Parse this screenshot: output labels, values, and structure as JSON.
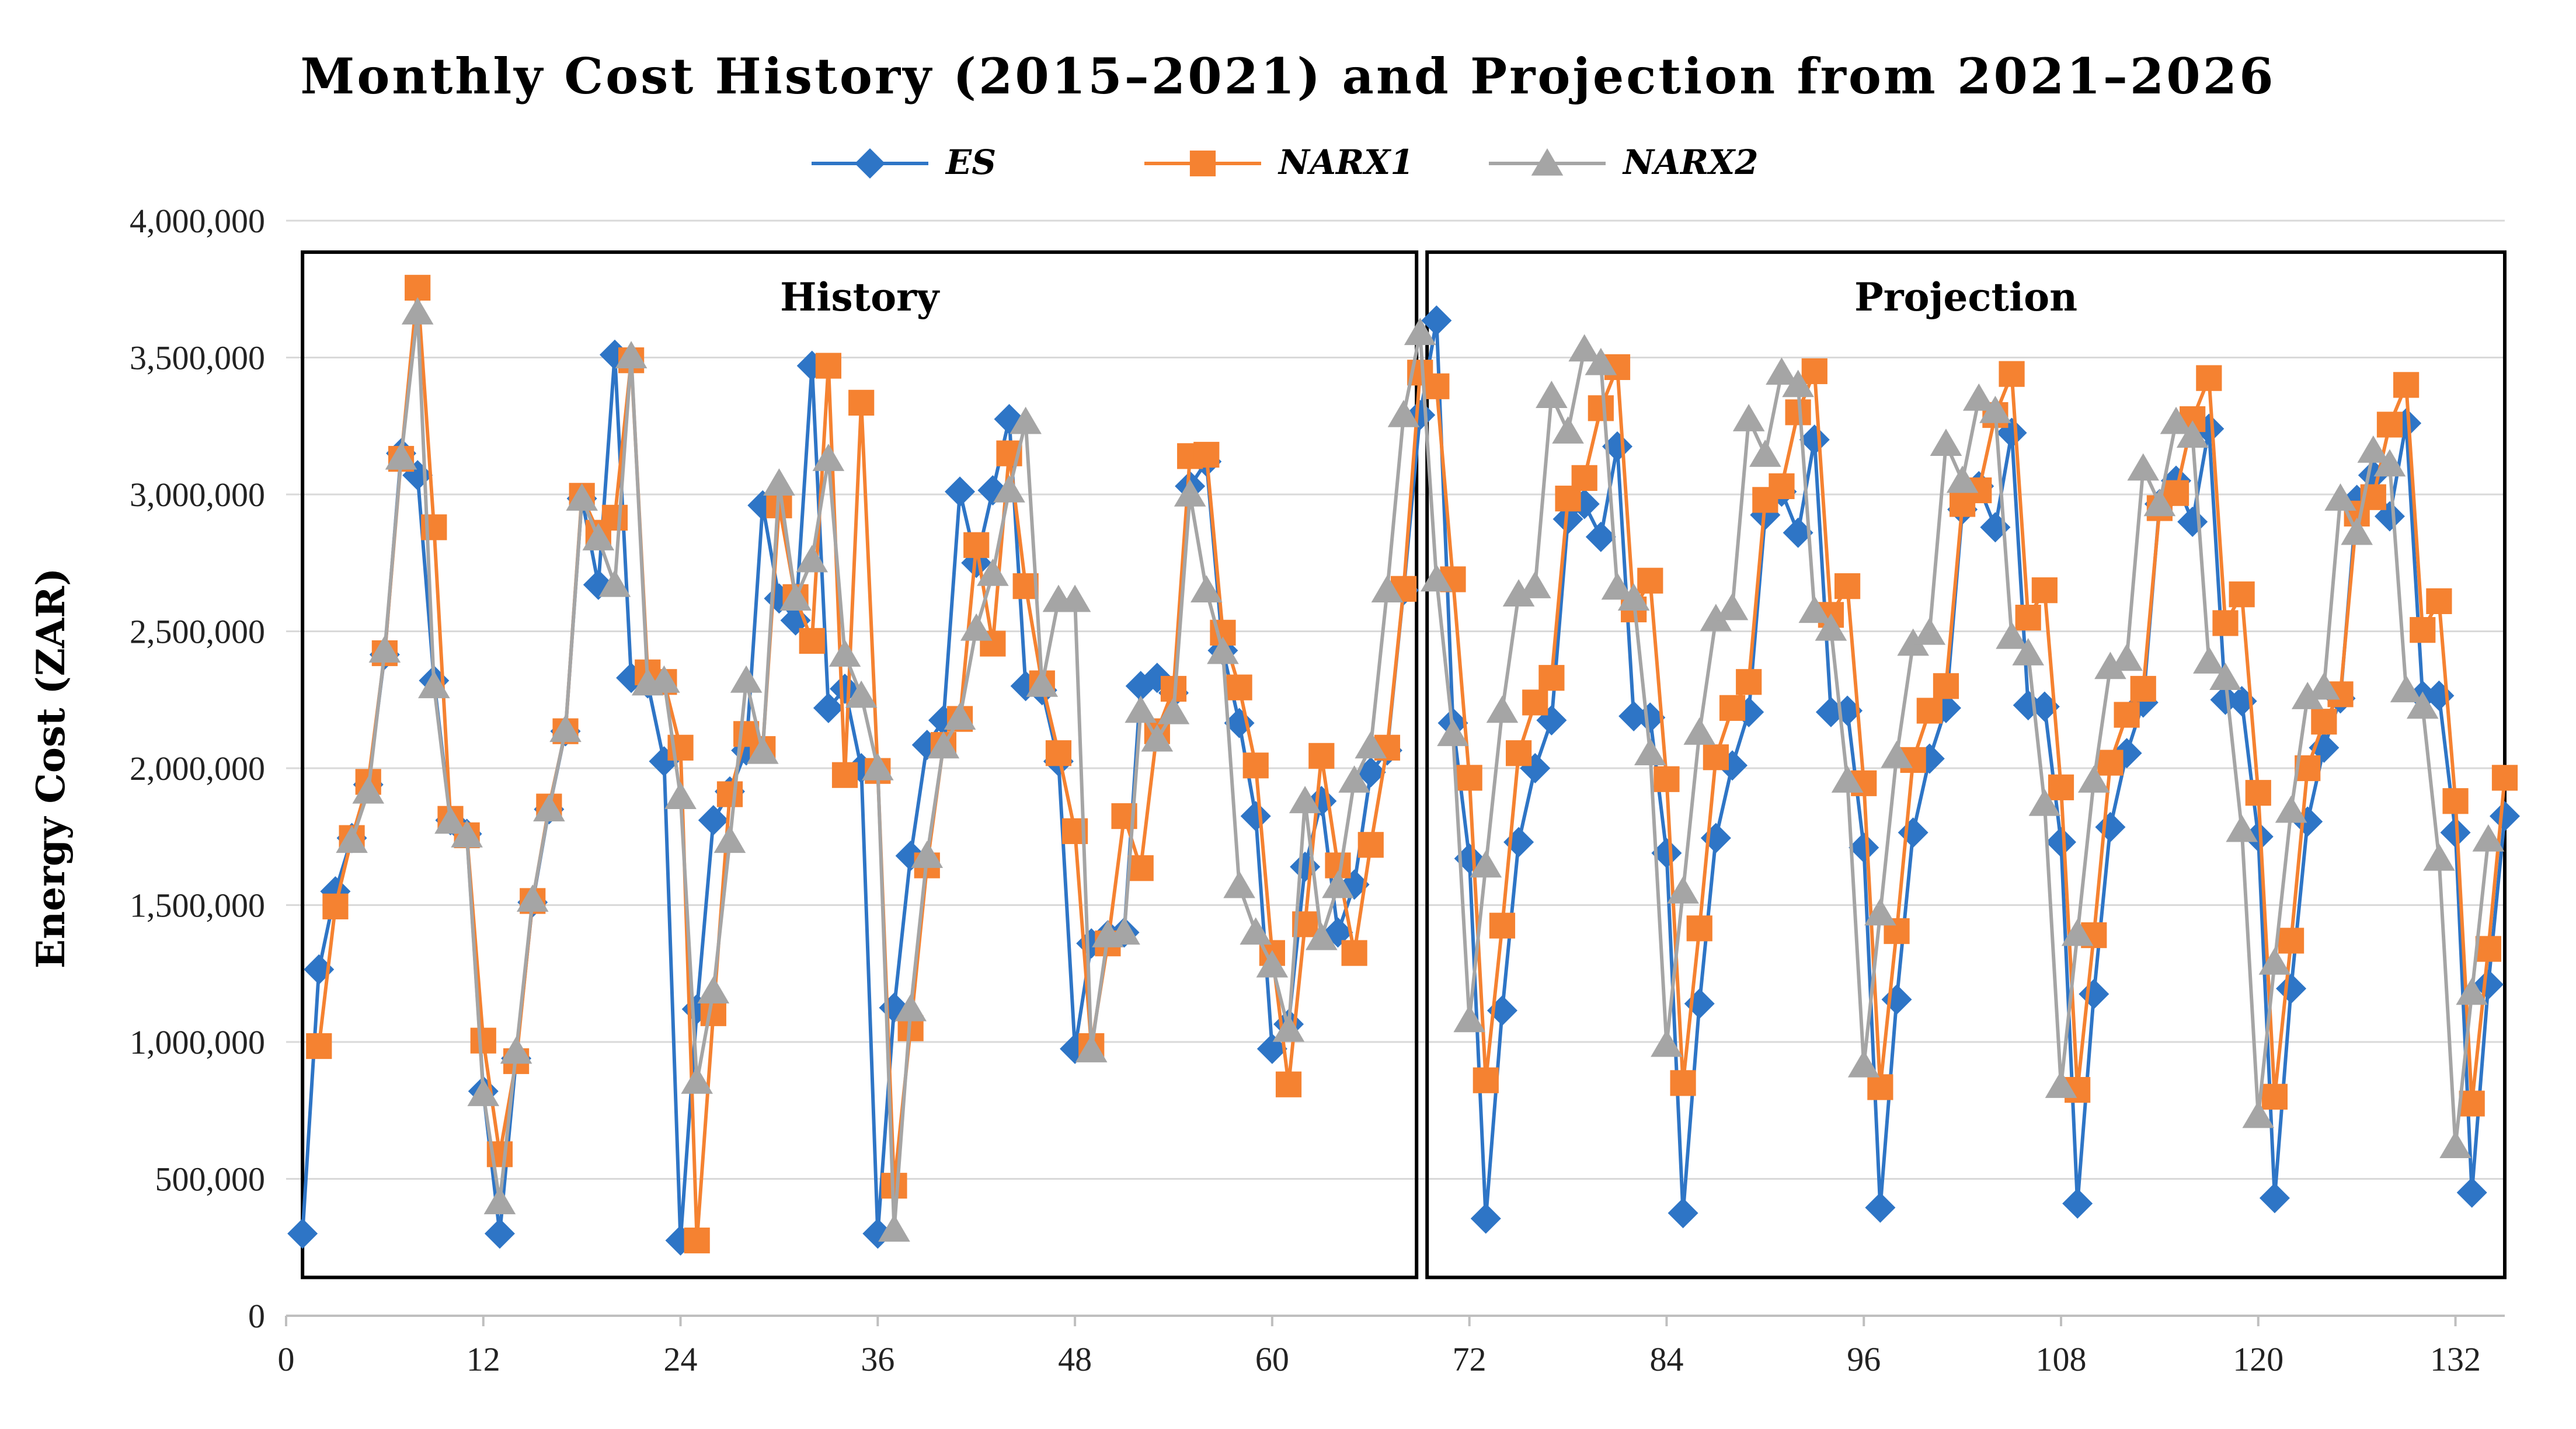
{
  "chart_data": {
    "type": "line",
    "title": "Monthly Cost History (2015–2021) and Projection from 2021–2026",
    "xlabel": "",
    "ylabel": "Energy Cost (ZAR)",
    "xlim": [
      0,
      135
    ],
    "ylim": [
      0,
      4000000
    ],
    "xticks": [
      0,
      12,
      24,
      36,
      48,
      60,
      72,
      84,
      96,
      108,
      120,
      132
    ],
    "yticks": [
      0,
      500000,
      1000000,
      1500000,
      2000000,
      2500000,
      3000000,
      3500000,
      4000000
    ],
    "ytick_labels": [
      "0",
      "500,000",
      "1,000,000",
      "1,500,000",
      "2,000,000",
      "2,500,000",
      "3,000,000",
      "3,500,000",
      "4,000,000"
    ],
    "grid": "horizontal",
    "legend": "top-center",
    "annotations": [
      {
        "text": "History",
        "x_range": [
          1,
          69
        ]
      },
      {
        "text": "Projection",
        "x_range": [
          69,
          135
        ]
      }
    ],
    "series": [
      {
        "name": "ES",
        "color": "#2E75C6",
        "marker": "diamond",
        "x_start": 1,
        "values": [
          300000,
          1265000,
          1550000,
          1745000,
          1940000,
          2415000,
          3150000,
          3070000,
          2320000,
          1810000,
          1760000,
          820000,
          300000,
          940000,
          1510000,
          1850000,
          2135000,
          2985000,
          2670000,
          3510000,
          2330000,
          2310000,
          2025000,
          275000,
          1120000,
          1810000,
          1915000,
          2065000,
          2960000,
          2620000,
          2540000,
          3470000,
          2220000,
          2290000,
          2000000,
          300000,
          1125000,
          1680000,
          2085000,
          2175000,
          3010000,
          2750000,
          3015000,
          3275000,
          2300000,
          2285000,
          2025000,
          975000,
          1360000,
          1390000,
          1400000,
          2300000,
          2330000,
          2275000,
          3030000,
          3120000,
          2430000,
          2165000,
          1825000,
          975000,
          1065000,
          1640000,
          1880000,
          1400000,
          1575000,
          1985000,
          2065000,
          2650000,
          3290000,
          3635000,
          2165000,
          1670000,
          355000,
          1115000,
          1730000,
          2000000,
          2175000,
          2910000,
          2965000,
          2845000,
          3175000,
          2190000,
          2185000,
          1690000,
          375000,
          1140000,
          1745000,
          2010000,
          2205000,
          2925000,
          3010000,
          2860000,
          3200000,
          2205000,
          2210000,
          1710000,
          395000,
          1155000,
          1765000,
          2035000,
          2220000,
          2945000,
          3030000,
          2880000,
          3225000,
          2230000,
          2225000,
          1730000,
          410000,
          1175000,
          1785000,
          2055000,
          2240000,
          2965000,
          3050000,
          2900000,
          3240000,
          2250000,
          2245000,
          1750000,
          430000,
          1195000,
          1805000,
          2075000,
          2255000,
          2980000,
          3070000,
          2920000,
          3260000,
          2265000,
          2265000,
          1765000,
          450000,
          1210000,
          1825000
        ]
      },
      {
        "name": "NARX1",
        "color": "#F58231",
        "marker": "square",
        "x_start": 2,
        "values": [
          985000,
          1495000,
          1745000,
          1950000,
          2420000,
          3130000,
          3755000,
          2880000,
          1815000,
          1755000,
          1005000,
          590000,
          930000,
          1515000,
          1860000,
          2135000,
          2995000,
          2860000,
          2915000,
          3490000,
          2350000,
          2315000,
          2075000,
          275000,
          1105000,
          1905000,
          2125000,
          2070000,
          2960000,
          2625000,
          2465000,
          3470000,
          1975000,
          3335000,
          1990000,
          475000,
          1050000,
          1645000,
          2085000,
          2180000,
          2815000,
          2455000,
          3150000,
          2665000,
          2310000,
          2055000,
          1770000,
          985000,
          1360000,
          1825000,
          1635000,
          2135000,
          2290000,
          3140000,
          3145000,
          2495000,
          2295000,
          2010000,
          1325000,
          845000,
          1430000,
          2045000,
          1645000,
          1325000,
          1720000,
          2075000,
          2655000,
          3445000,
          3395000,
          2690000,
          1965000,
          860000,
          1425000,
          2055000,
          2240000,
          2330000,
          2985000,
          3060000,
          3315000,
          3465000,
          2580000,
          2685000,
          1960000,
          850000,
          1415000,
          2040000,
          2220000,
          2315000,
          2980000,
          3030000,
          3300000,
          3450000,
          2560000,
          2665000,
          1945000,
          835000,
          1405000,
          2030000,
          2210000,
          2300000,
          2965000,
          3015000,
          3290000,
          3440000,
          2550000,
          2650000,
          1930000,
          825000,
          1390000,
          2020000,
          2195000,
          2290000,
          2950000,
          3005000,
          3275000,
          3425000,
          2530000,
          2635000,
          1910000,
          800000,
          1370000,
          2000000,
          2170000,
          2270000,
          2930000,
          2990000,
          3255000,
          3400000,
          2505000,
          2610000,
          1880000,
          775000,
          1340000,
          1965000
        ]
      },
      {
        "name": "NARX2",
        "color": "#A5A5A5",
        "marker": "triangle",
        "x_start": 4,
        "values": [
          1735000,
          1915000,
          2430000,
          3135000,
          3665000,
          2300000,
          1805000,
          1755000,
          810000,
          415000,
          965000,
          1520000,
          1850000,
          2140000,
          2985000,
          2840000,
          2670000,
          3505000,
          2310000,
          2320000,
          1895000,
          855000,
          1185000,
          1735000,
          2320000,
          2060000,
          3040000,
          2620000,
          2760000,
          3130000,
          2415000,
          2265000,
          2000000,
          315000,
          1120000,
          1680000,
          2080000,
          2185000,
          2510000,
          2710000,
          3015000,
          3265000,
          2305000,
          2615000,
          2615000,
          970000,
          1390000,
          1400000,
          2210000,
          2105000,
          2205000,
          3000000,
          2650000,
          2425000,
          1570000,
          1400000,
          1280000,
          1045000,
          1880000,
          1380000,
          1570000,
          1955000,
          2080000,
          2650000,
          3290000,
          3590000,
          2690000,
          2125000,
          1080000,
          1645000,
          2210000,
          2635000,
          2665000,
          3360000,
          3230000,
          3530000,
          3480000,
          2660000,
          2620000,
          2055000,
          990000,
          1550000,
          2130000,
          2545000,
          2585000,
          3275000,
          3145000,
          3445000,
          3400000,
          2575000,
          2510000,
          1955000,
          915000,
          1470000,
          2045000,
          2455000,
          2495000,
          3185000,
          3050000,
          3350000,
          3305000,
          2480000,
          2420000,
          1870000,
          840000,
          1395000,
          1955000,
          2370000,
          2400000,
          3095000,
          2965000,
          3265000,
          3215000,
          2390000,
          2330000,
          1775000,
          730000,
          1290000,
          1845000,
          2260000,
          2295000,
          2985000,
          2860000,
          3160000,
          3110000,
          2285000,
          2225000,
          1670000,
          620000,
          1180000,
          1740000
        ]
      }
    ]
  }
}
